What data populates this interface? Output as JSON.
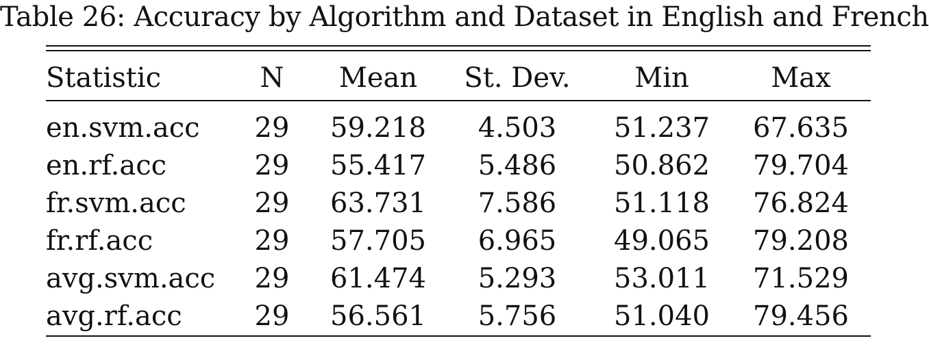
{
  "caption": "Table 26: Accuracy by Algorithm and Dataset in English and French",
  "table": {
    "headers": [
      "Statistic",
      "N",
      "Mean",
      "St. Dev.",
      "Min",
      "Max"
    ],
    "rows": [
      [
        "en.svm.acc",
        "29",
        "59.218",
        "4.503",
        "51.237",
        "67.635"
      ],
      [
        "en.rf.acc",
        "29",
        "55.417",
        "5.486",
        "50.862",
        "79.704"
      ],
      [
        "fr.svm.acc",
        "29",
        "63.731",
        "7.586",
        "51.118",
        "76.824"
      ],
      [
        "fr.rf.acc",
        "29",
        "57.705",
        "6.965",
        "49.065",
        "79.208"
      ],
      [
        "avg.svm.acc",
        "29",
        "61.474",
        "5.293",
        "53.011",
        "71.529"
      ],
      [
        "avg.rf.acc",
        "29",
        "56.561",
        "5.756",
        "51.040",
        "79.456"
      ]
    ]
  }
}
